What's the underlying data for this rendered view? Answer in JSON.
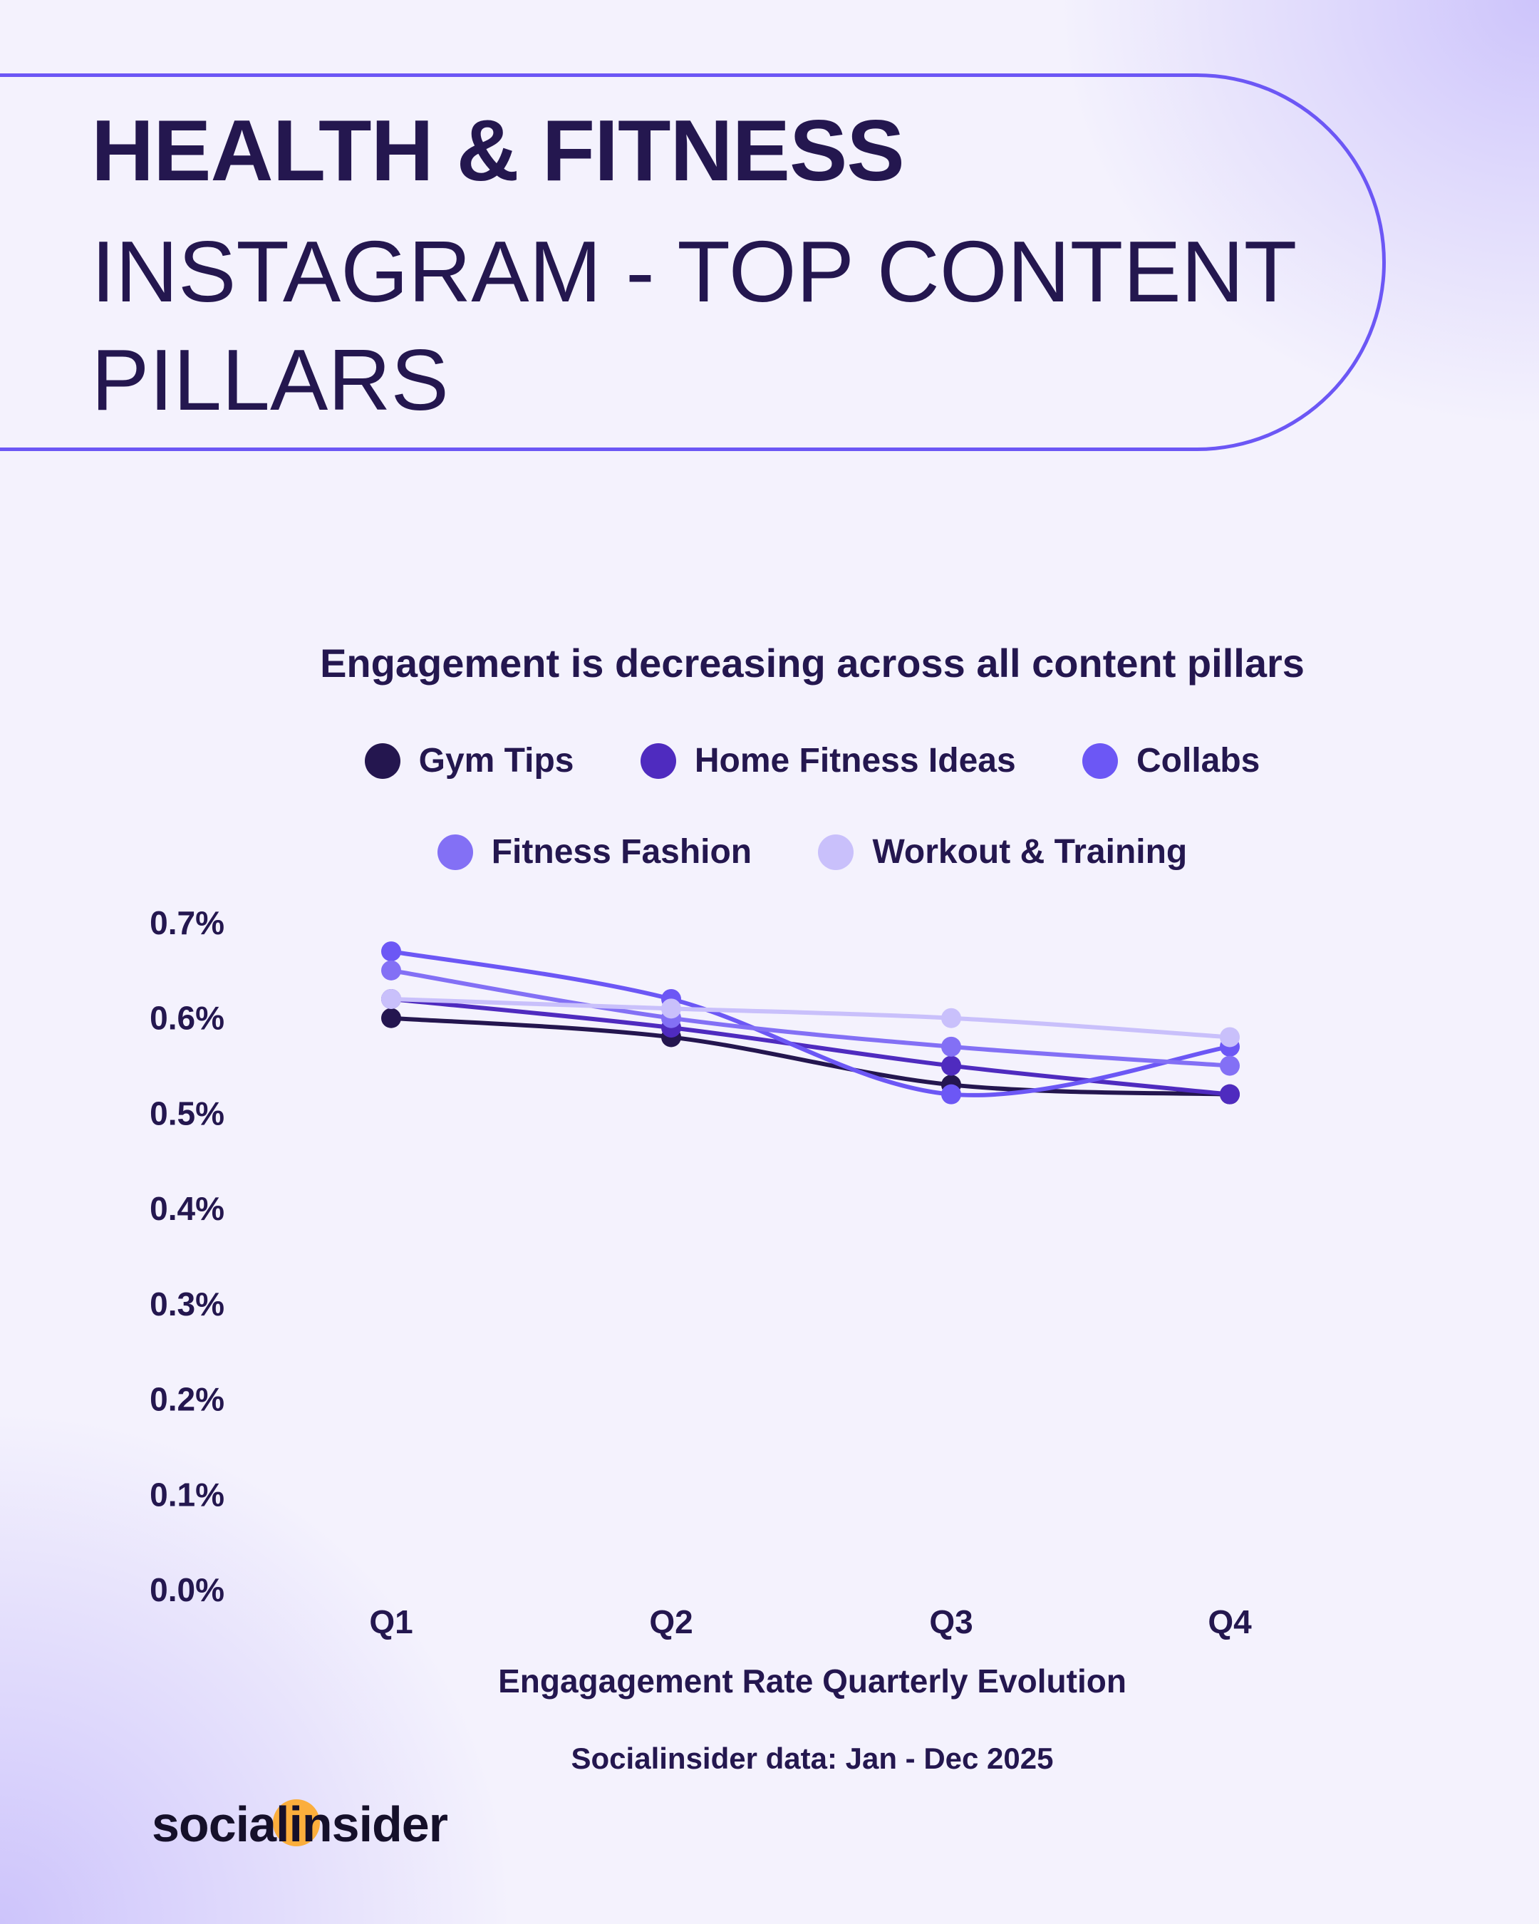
{
  "header": {
    "line1": "HEALTH & FITNESS",
    "line2": "INSTAGRAM - TOP CONTENT PILLARS"
  },
  "logo": {
    "text": "socialinsider",
    "accent": "#fbae3c"
  },
  "chart_data": {
    "type": "line",
    "title": "Engagement is decreasing across all content pillars",
    "xlabel": "Engagagement Rate Quarterly Evolution",
    "ylabel": "",
    "source": "Socialinsider data: Jan - Dec 2025",
    "categories": [
      "Q1",
      "Q2",
      "Q3",
      "Q4"
    ],
    "yticks": [
      "0.0%",
      "0.1%",
      "0.2%",
      "0.3%",
      "0.4%",
      "0.5%",
      "0.6%",
      "0.7%"
    ],
    "ylim": [
      0,
      0.7
    ],
    "grid": false,
    "legend_position": "top",
    "series": [
      {
        "name": "Gym Tips",
        "color": "#24164f",
        "values": [
          0.6,
          0.58,
          0.53,
          0.52
        ]
      },
      {
        "name": "Home Fitness Ideas",
        "color": "#4f2bbf",
        "values": [
          0.62,
          0.59,
          0.55,
          0.52
        ]
      },
      {
        "name": "Collabs",
        "color": "#6c57f5",
        "values": [
          0.67,
          0.62,
          0.52,
          0.57
        ]
      },
      {
        "name": "Fitness Fashion",
        "color": "#8370f5",
        "values": [
          0.65,
          0.6,
          0.57,
          0.55
        ]
      },
      {
        "name": "Workout & Training",
        "color": "#c9c0fb",
        "values": [
          0.62,
          0.61,
          0.6,
          0.58
        ]
      }
    ]
  }
}
